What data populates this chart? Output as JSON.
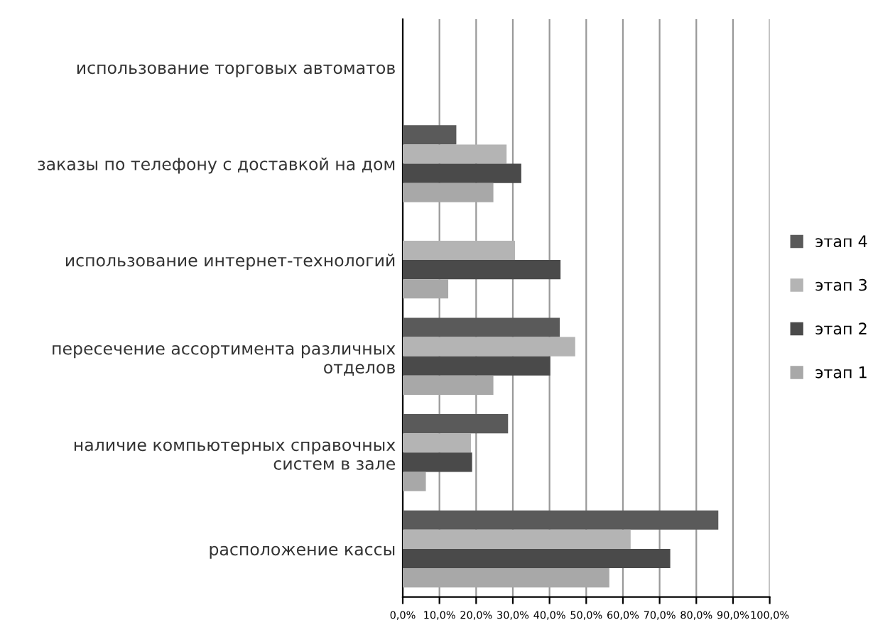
{
  "chart_data": {
    "type": "bar",
    "orientation": "horizontal",
    "categories": [
      "использование торговых автоматов",
      "заказы по телефону с доставкой на дом",
      "использование интернет-технологий",
      "пересечение ассортимента различных\nотделов",
      "наличие компьютерных справочных\nсистем в зале",
      "расположение кассы"
    ],
    "series": [
      {
        "name": "этап 4",
        "color": "#5a5a5a",
        "values": [
          0,
          14.6,
          0,
          42.8,
          28.7,
          86
        ]
      },
      {
        "name": "этап 3",
        "color": "#b4b4b4",
        "values": [
          0,
          28.3,
          30.6,
          47,
          18.6,
          62.1
        ]
      },
      {
        "name": "этап 2",
        "color": "#4a4a4a",
        "values": [
          0,
          32.3,
          43,
          40.2,
          18.9,
          72.9
        ]
      },
      {
        "name": "этап 1",
        "color": "#a8a8a8",
        "values": [
          0,
          24.7,
          12.4,
          24.7,
          6.3,
          56.3
        ]
      }
    ],
    "xlim": [
      0,
      100
    ],
    "xticks": [
      {
        "value": 0,
        "label": "0,0%"
      },
      {
        "value": 10,
        "label": "10,0%"
      },
      {
        "value": 20,
        "label": "20,0%"
      },
      {
        "value": 30,
        "label": "30,0%"
      },
      {
        "value": 40,
        "label": "40,0%"
      },
      {
        "value": 50,
        "label": "50,0%"
      },
      {
        "value": 60,
        "label": "60,0%"
      },
      {
        "value": 70,
        "label": "70,0%"
      },
      {
        "value": 80,
        "label": "80,0%"
      },
      {
        "value": 90,
        "label": "90,0%"
      },
      {
        "value": 100,
        "label": "100,0%"
      }
    ],
    "grid": "x",
    "legend": "right"
  }
}
